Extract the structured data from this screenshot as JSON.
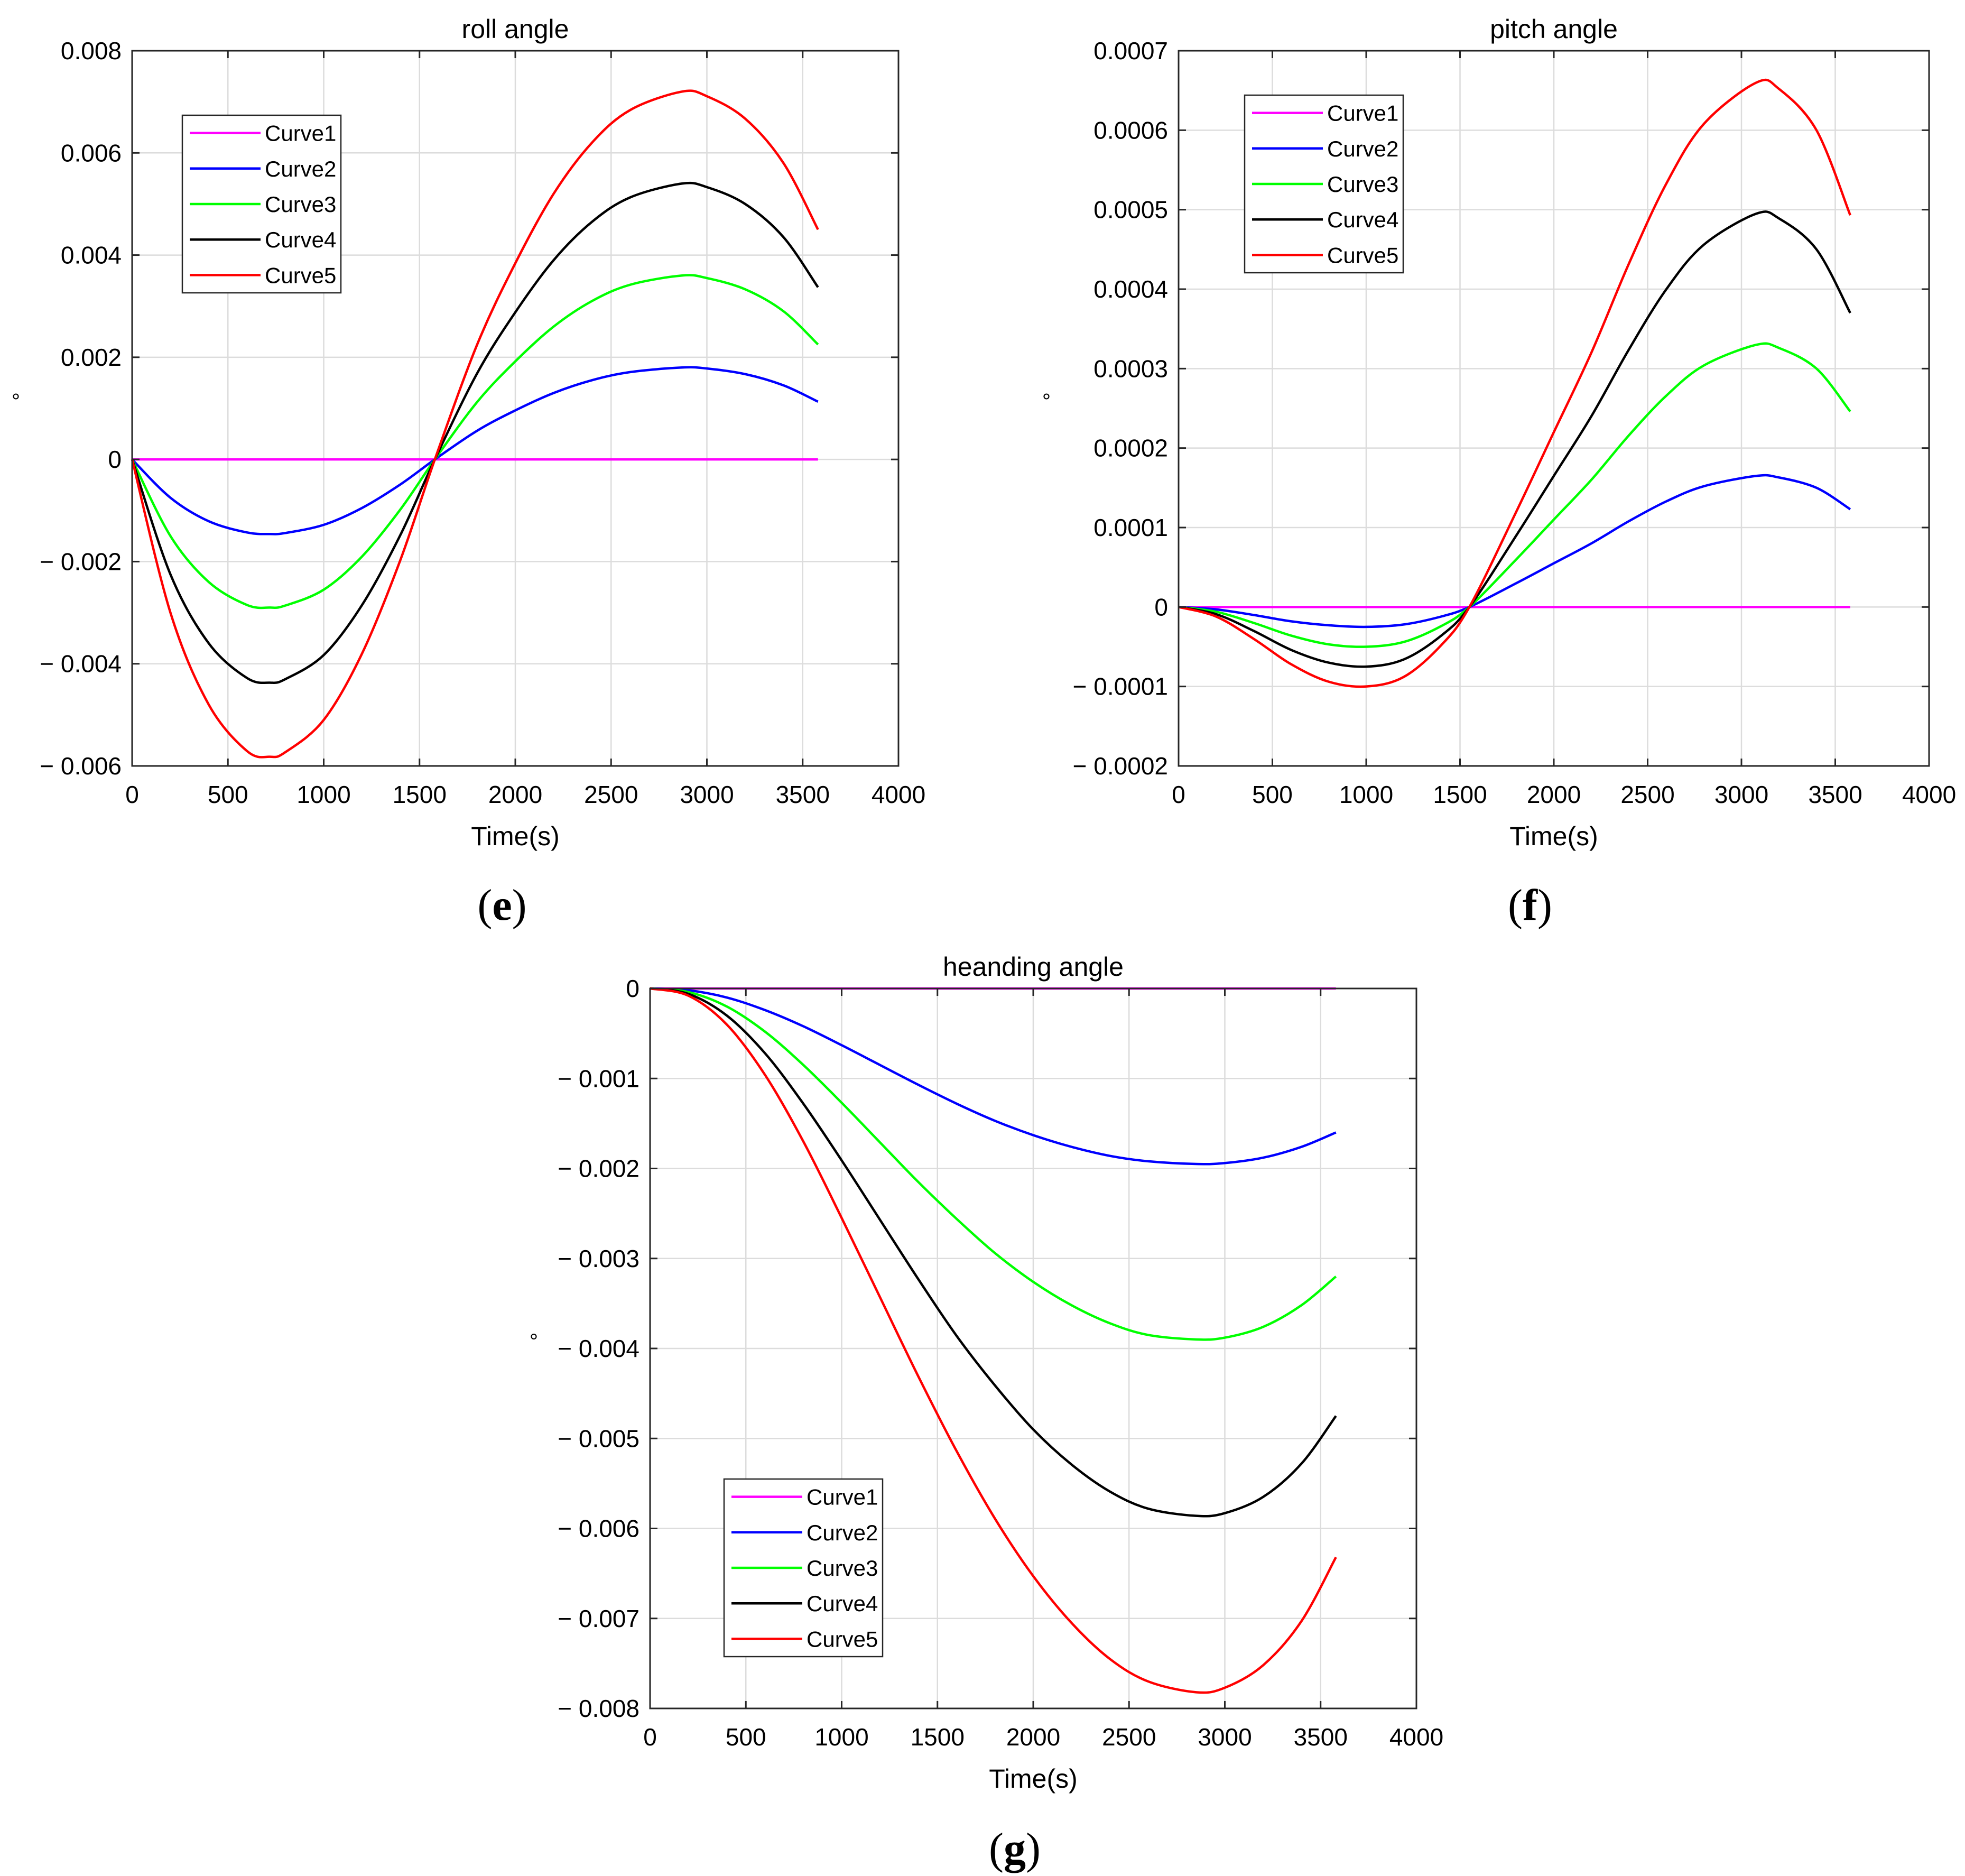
{
  "chart_data": [
    {
      "type": "line",
      "panel_label": "e",
      "title": "roll angle",
      "xlabel": "Time(s)",
      "ylabel": "°",
      "xlim": [
        0,
        4000
      ],
      "ylim": [
        -0.006,
        0.008
      ],
      "x_ticks": [
        0,
        500,
        1000,
        1500,
        2000,
        2500,
        3000,
        3500,
        4000
      ],
      "x_tick_labels": [
        "0",
        "500",
        "1000",
        "1500",
        "2000",
        "2500",
        "3000",
        "3500",
        "4000"
      ],
      "y_ticks": [
        -0.006,
        -0.004,
        -0.002,
        0,
        0.002,
        0.004,
        0.006,
        0.008
      ],
      "y_tick_labels": [
        "− 0.006",
        "− 0.004",
        "− 0.002",
        "0",
        "0.002",
        "0.004",
        "0.006",
        "0.008"
      ],
      "grid": true,
      "legend_position": "top-left",
      "x": [
        0,
        200,
        400,
        600,
        720,
        800,
        1000,
        1200,
        1400,
        1580,
        1800,
        2000,
        2200,
        2400,
        2600,
        2870,
        3000,
        3200,
        3400,
        3580
      ],
      "series": [
        {
          "name": "Curve1",
          "color": "#ff00ff",
          "values": [
            0,
            0,
            0,
            0,
            0,
            0,
            0,
            0,
            0,
            0,
            0,
            0,
            0,
            0,
            0,
            0,
            0,
            0,
            0,
            0
          ]
        },
        {
          "name": "Curve2",
          "color": "#0000ff",
          "values": [
            0,
            -0.00075,
            -0.00121,
            -0.00143,
            -0.00146,
            -0.00144,
            -0.00128,
            -0.00095,
            -0.00049,
            0,
            0.00056,
            0.00096,
            0.0013,
            0.00155,
            0.00171,
            0.0018,
            0.00178,
            0.00167,
            0.00145,
            0.00113
          ]
        },
        {
          "name": "Curve3",
          "color": "#00ff00",
          "values": [
            0,
            -0.0015,
            -0.0024,
            -0.00285,
            -0.0029,
            -0.00286,
            -0.00255,
            -0.0019,
            -0.00098,
            0,
            0.00112,
            0.00192,
            0.0026,
            0.0031,
            0.00342,
            0.0036,
            0.00355,
            0.00333,
            0.0029,
            0.00225
          ]
        },
        {
          "name": "Curve4",
          "color": "#000000",
          "values": [
            0,
            -0.00225,
            -0.0036,
            -0.00428,
            -0.00437,
            -0.0043,
            -0.00383,
            -0.00285,
            -0.00148,
            0,
            0.00168,
            0.00288,
            0.0039,
            0.00465,
            0.00513,
            0.0054,
            0.00533,
            0.005,
            0.00435,
            0.00337
          ]
        },
        {
          "name": "Curve5",
          "color": "#ff0000",
          "values": [
            0,
            -0.003,
            -0.0048,
            -0.00571,
            -0.00582,
            -0.00573,
            -0.0051,
            -0.0038,
            -0.00197,
            0,
            0.00224,
            0.00384,
            0.0052,
            0.0062,
            0.00684,
            0.0072,
            0.00711,
            0.00667,
            0.0058,
            0.0045
          ]
        }
      ]
    },
    {
      "type": "line",
      "panel_label": "f",
      "title": "pitch angle",
      "xlabel": "Time(s)",
      "ylabel": "°",
      "xlim": [
        0,
        4000
      ],
      "ylim": [
        -0.0002,
        0.0007
      ],
      "x_ticks": [
        0,
        500,
        1000,
        1500,
        2000,
        2500,
        3000,
        3500,
        4000
      ],
      "x_tick_labels": [
        "0",
        "500",
        "1000",
        "1500",
        "2000",
        "2500",
        "3000",
        "3500",
        "4000"
      ],
      "y_ticks": [
        -0.0002,
        -0.0001,
        0,
        0.0001,
        0.0002,
        0.0003,
        0.0004,
        0.0005,
        0.0006,
        0.0007
      ],
      "y_tick_labels": [
        "− 0.0002",
        "− 0.0001",
        "0",
        "0.0001",
        "0.0002",
        "0.0003",
        "0.0004",
        "0.0005",
        "0.0006",
        "0.0007"
      ],
      "grid": true,
      "legend_position": "top-left",
      "x": [
        0,
        200,
        400,
        600,
        800,
        1000,
        1200,
        1400,
        1550,
        1800,
        2000,
        2200,
        2400,
        2600,
        2800,
        3080,
        3200,
        3400,
        3580
      ],
      "series": [
        {
          "name": "Curve1",
          "color": "#ff00ff",
          "values": [
            0,
            0,
            0,
            0,
            0,
            0,
            0,
            0,
            0,
            0,
            0,
            0,
            0,
            0,
            0,
            0,
            0,
            0,
            0
          ]
        },
        {
          "name": "Curve2",
          "color": "#0000ff",
          "values": [
            0,
            -3e-06,
            -1e-05,
            -1.8e-05,
            -2.3e-05,
            -2.5e-05,
            -2.2e-05,
            -1.2e-05,
            0,
            3e-05,
            5.5e-05,
            8e-05,
            0.000108,
            0.000133,
            0.000152,
            0.000165,
            0.000163,
            0.00015,
            0.000123
          ]
        },
        {
          "name": "Curve3",
          "color": "#00ff00",
          "values": [
            0,
            -6e-06,
            -2e-05,
            -3.6e-05,
            -4.7e-05,
            -5e-05,
            -4.4e-05,
            -2.4e-05,
            0,
            6e-05,
            0.00011,
            0.00016,
            0.000216,
            0.000266,
            0.000304,
            0.00033,
            0.000326,
            0.0003,
            0.000246
          ]
        },
        {
          "name": "Curve4",
          "color": "#000000",
          "values": [
            0,
            -9e-06,
            -3e-05,
            -5.4e-05,
            -7e-05,
            -7.5e-05,
            -6.6e-05,
            -3.6e-05,
            0,
            9e-05,
            0.000165,
            0.00024,
            0.000324,
            0.0004,
            0.000456,
            0.000495,
            0.000489,
            0.00045,
            0.00037
          ]
        },
        {
          "name": "Curve5",
          "color": "#ff0000",
          "values": [
            0,
            -1.2e-05,
            -4e-05,
            -7.2e-05,
            -9.4e-05,
            -0.0001,
            -8.8e-05,
            -4.8e-05,
            0,
            0.00012,
            0.00022,
            0.00032,
            0.000432,
            0.000533,
            0.000608,
            0.00066,
            0.000652,
            0.0006,
            0.000493
          ]
        }
      ]
    },
    {
      "type": "line",
      "panel_label": "g",
      "title": "heanding angle",
      "xlabel": "Time(s)",
      "ylabel": "°",
      "xlim": [
        0,
        4000
      ],
      "ylim": [
        -0.008,
        0
      ],
      "x_ticks": [
        0,
        500,
        1000,
        1500,
        2000,
        2500,
        3000,
        3500,
        4000
      ],
      "x_tick_labels": [
        "0",
        "500",
        "1000",
        "1500",
        "2000",
        "2500",
        "3000",
        "3500",
        "4000"
      ],
      "y_ticks": [
        -0.008,
        -0.007,
        -0.006,
        -0.005,
        -0.004,
        -0.003,
        -0.002,
        -0.001,
        0
      ],
      "y_tick_labels": [
        "− 0.008",
        "− 0.007",
        "− 0.006",
        "− 0.005",
        "− 0.004",
        "− 0.003",
        "− 0.002",
        "− 0.001",
        "0"
      ],
      "grid": true,
      "legend_position": "bottom-left",
      "x": [
        0,
        200,
        400,
        600,
        800,
        1000,
        1200,
        1400,
        1600,
        1800,
        2000,
        2200,
        2400,
        2600,
        2850,
        3000,
        3200,
        3400,
        3580
      ],
      "series": [
        {
          "name": "Curve1",
          "color": "#ff00ff",
          "values": [
            0,
            0,
            0,
            0,
            0,
            0,
            0,
            0,
            0,
            0,
            0,
            0,
            0,
            0,
            0,
            0,
            0,
            0,
            0
          ]
        },
        {
          "name": "Curve2",
          "color": "#0000ff",
          "values": [
            0,
            -2e-05,
            -0.0001,
            -0.00024,
            -0.00042,
            -0.00063,
            -0.00085,
            -0.00107,
            -0.00128,
            -0.00147,
            -0.00163,
            -0.00176,
            -0.00186,
            -0.00192,
            -0.00195,
            -0.00194,
            -0.00188,
            -0.00176,
            -0.0016
          ]
        },
        {
          "name": "Curve3",
          "color": "#00ff00",
          "values": [
            0,
            -4e-05,
            -0.0002,
            -0.00048,
            -0.00085,
            -0.00127,
            -0.00171,
            -0.00215,
            -0.00256,
            -0.00294,
            -0.00326,
            -0.00352,
            -0.00372,
            -0.00385,
            -0.0039,
            -0.00388,
            -0.00376,
            -0.00352,
            -0.0032
          ]
        },
        {
          "name": "Curve4",
          "color": "#000000",
          "values": [
            0,
            -6e-05,
            -0.0003,
            -0.00072,
            -0.00128,
            -0.00191,
            -0.00257,
            -0.00323,
            -0.00386,
            -0.00441,
            -0.0049,
            -0.00529,
            -0.00559,
            -0.00578,
            -0.00586,
            -0.00583,
            -0.00565,
            -0.00528,
            -0.00475
          ]
        },
        {
          "name": "Curve5",
          "color": "#ff0000",
          "values": [
            0,
            -8e-05,
            -0.0004,
            -0.00096,
            -0.0017,
            -0.00255,
            -0.00343,
            -0.00431,
            -0.00514,
            -0.00589,
            -0.00653,
            -0.00705,
            -0.00745,
            -0.0077,
            -0.00782,
            -0.00777,
            -0.00752,
            -0.00703,
            -0.00632
          ]
        }
      ]
    }
  ]
}
